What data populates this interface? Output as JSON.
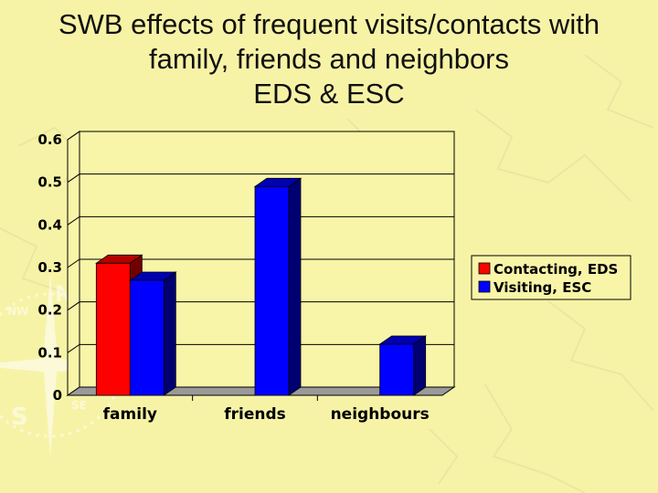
{
  "page": {
    "title_lines": [
      "SWB effects of frequent visits/contacts with",
      "family, friends and neighbors",
      "EDS & ESC"
    ]
  },
  "colors": {
    "background": "#f7f3a6",
    "plot_background": "#f8f4a8",
    "floor": "#9a9a9a"
  },
  "chart_data": {
    "type": "bar",
    "style": "3d-clustered",
    "categories": [
      "family",
      "friends",
      "neighbours"
    ],
    "series": [
      {
        "name": "Contacting, EDS",
        "values": [
          0.31,
          null,
          null
        ],
        "color": "#ff0000"
      },
      {
        "name": "Visiting, ESC",
        "values": [
          0.27,
          0.49,
          0.12
        ],
        "color": "#0000ff"
      }
    ],
    "yticks": [
      "0",
      "0.1",
      "0.2",
      "0.3",
      "0.4",
      "0.5",
      "0.6"
    ],
    "ylim": [
      0,
      0.6
    ],
    "grid": true,
    "legend_position": "right"
  }
}
